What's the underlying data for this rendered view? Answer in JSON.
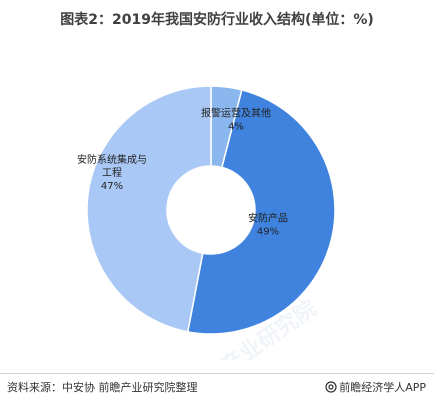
{
  "title": "图表2：2019年我国安防行业收入结构(单位：%)",
  "chart_data": {
    "type": "pie",
    "donut": true,
    "title": "图表2：2019年我国安防行业收入结构(单位：%)",
    "unit": "%",
    "slices": [
      {
        "label": "报警运营及其他",
        "label_lines": [
          "报警运营及其他"
        ],
        "value": 4,
        "value_label": "4%",
        "color": "#8bb7ef"
      },
      {
        "label": "安防产品",
        "label_lines": [
          "安防产品"
        ],
        "value": 49,
        "value_label": "49%",
        "color": "#3f83df"
      },
      {
        "label": "安防系统集成与工程",
        "label_lines": [
          "安防系统集成与",
          "工程"
        ],
        "value": 47,
        "value_label": "47%",
        "color": "#a9c8f5"
      }
    ],
    "start_angle_deg": 0,
    "direction": "clockwise"
  },
  "watermark": "前瞻产业研究院",
  "footer": {
    "source": "资料来源：中安协 前瞻产业研究院整理",
    "brand": "前瞻经济学人APP",
    "brand_icon": "at-icon"
  }
}
